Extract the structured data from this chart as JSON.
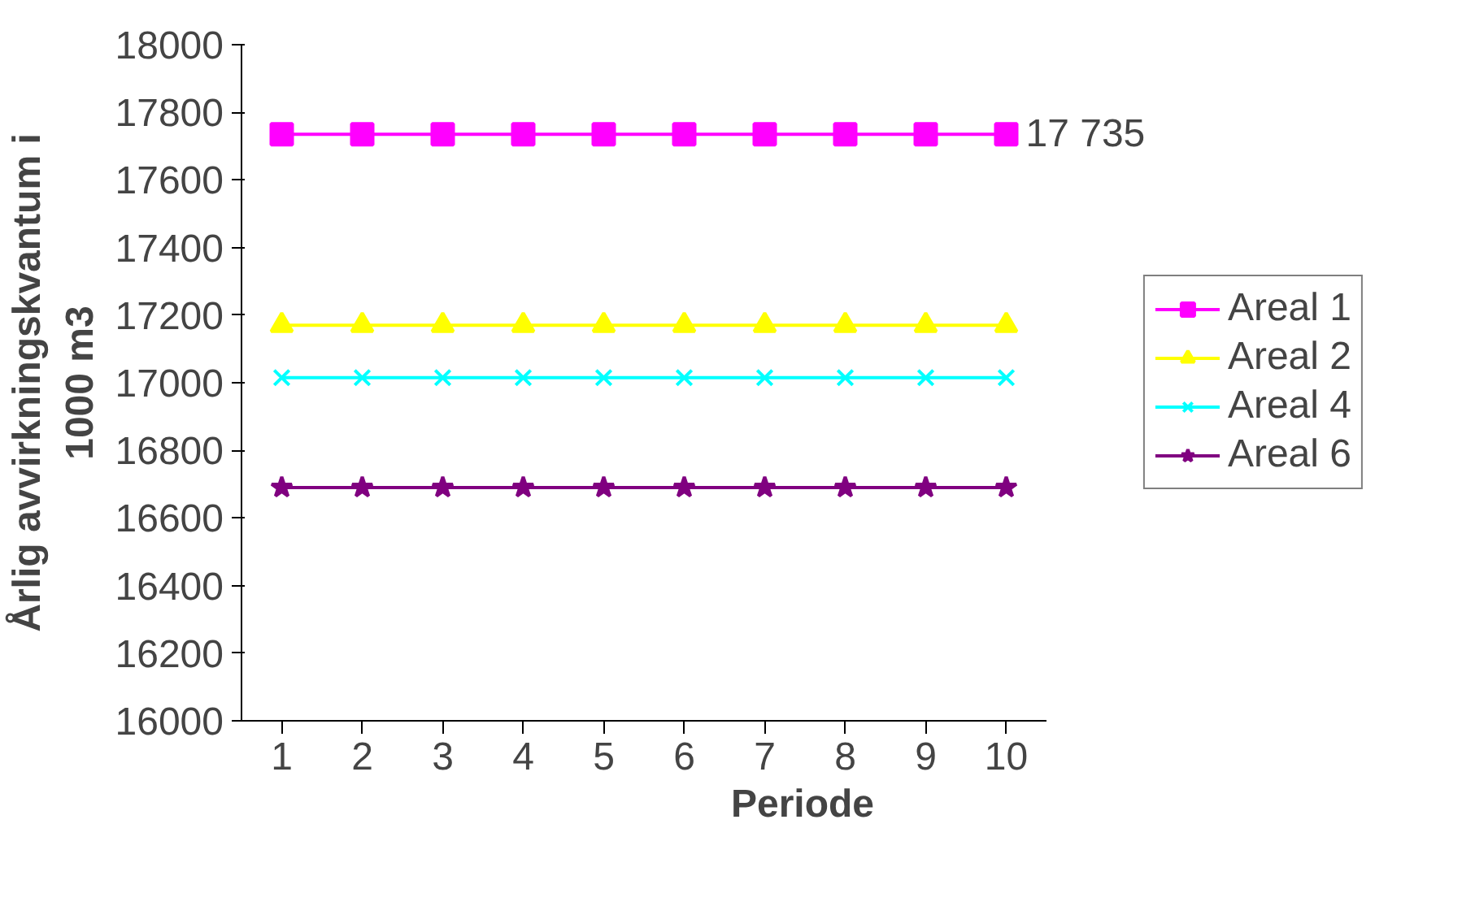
{
  "chart_data": {
    "type": "line",
    "xlabel": "Periode",
    "ylabel": "Årlig avvirkningskvantum i\n1000 m3",
    "categories": [
      "1",
      "2",
      "3",
      "4",
      "5",
      "6",
      "7",
      "8",
      "9",
      "10"
    ],
    "ylim": [
      16000,
      18000
    ],
    "yticks": [
      16000,
      16200,
      16400,
      16600,
      16800,
      17000,
      17200,
      17400,
      17600,
      17800,
      18000
    ],
    "grid": false,
    "legend": "right",
    "series": [
      {
        "name": "Areal 1",
        "color": "#ff00ff",
        "marker": "square",
        "values": [
          17735,
          17735,
          17735,
          17735,
          17735,
          17735,
          17735,
          17735,
          17735,
          17735
        ]
      },
      {
        "name": "Areal 2",
        "color": "#ffff00",
        "marker": "triangle",
        "values": [
          17170,
          17170,
          17170,
          17170,
          17170,
          17170,
          17170,
          17170,
          17170,
          17170
        ]
      },
      {
        "name": "Areal 4",
        "color": "#00ffff",
        "marker": "cross",
        "values": [
          17015,
          17015,
          17015,
          17015,
          17015,
          17015,
          17015,
          17015,
          17015,
          17015
        ]
      },
      {
        "name": "Areal 6",
        "color": "#800080",
        "marker": "star",
        "values": [
          16690,
          16690,
          16690,
          16690,
          16690,
          16690,
          16690,
          16690,
          16690,
          16690
        ]
      }
    ],
    "annotations": [
      {
        "text": "17 735",
        "x": "10",
        "y": 17735
      }
    ]
  }
}
